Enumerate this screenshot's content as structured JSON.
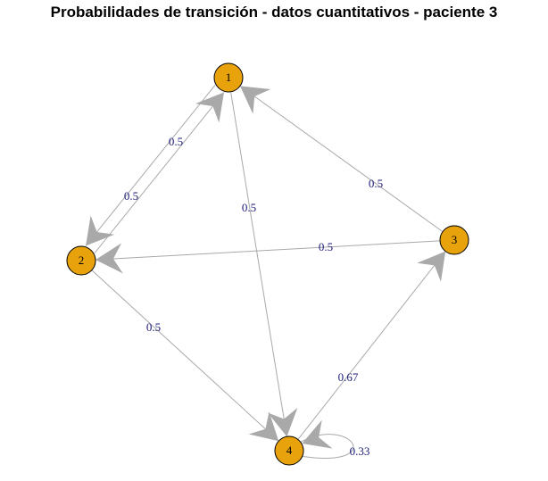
{
  "title": "Probabilidades de transición - datos cuantitativos - paciente 3",
  "colors": {
    "node_fill": "#e8a20c",
    "edge": "#a9a9a9",
    "edge_label": "#1b1b7a"
  },
  "nodes": [
    {
      "id": "1",
      "label": "1"
    },
    {
      "id": "2",
      "label": "2"
    },
    {
      "id": "3",
      "label": "3"
    },
    {
      "id": "4",
      "label": "4"
    }
  ],
  "edges": [
    {
      "from": "1",
      "to": "2",
      "label": "0.5"
    },
    {
      "from": "2",
      "to": "1",
      "label": "0.5"
    },
    {
      "from": "1",
      "to": "4",
      "label": "0.5"
    },
    {
      "from": "3",
      "to": "1",
      "label": "0.5"
    },
    {
      "from": "3",
      "to": "2",
      "label": "0.5"
    },
    {
      "from": "2",
      "to": "4",
      "label": "0.5"
    },
    {
      "from": "4",
      "to": "3",
      "label": "0.67"
    },
    {
      "from": "4",
      "to": "4",
      "label": "0.33"
    }
  ]
}
